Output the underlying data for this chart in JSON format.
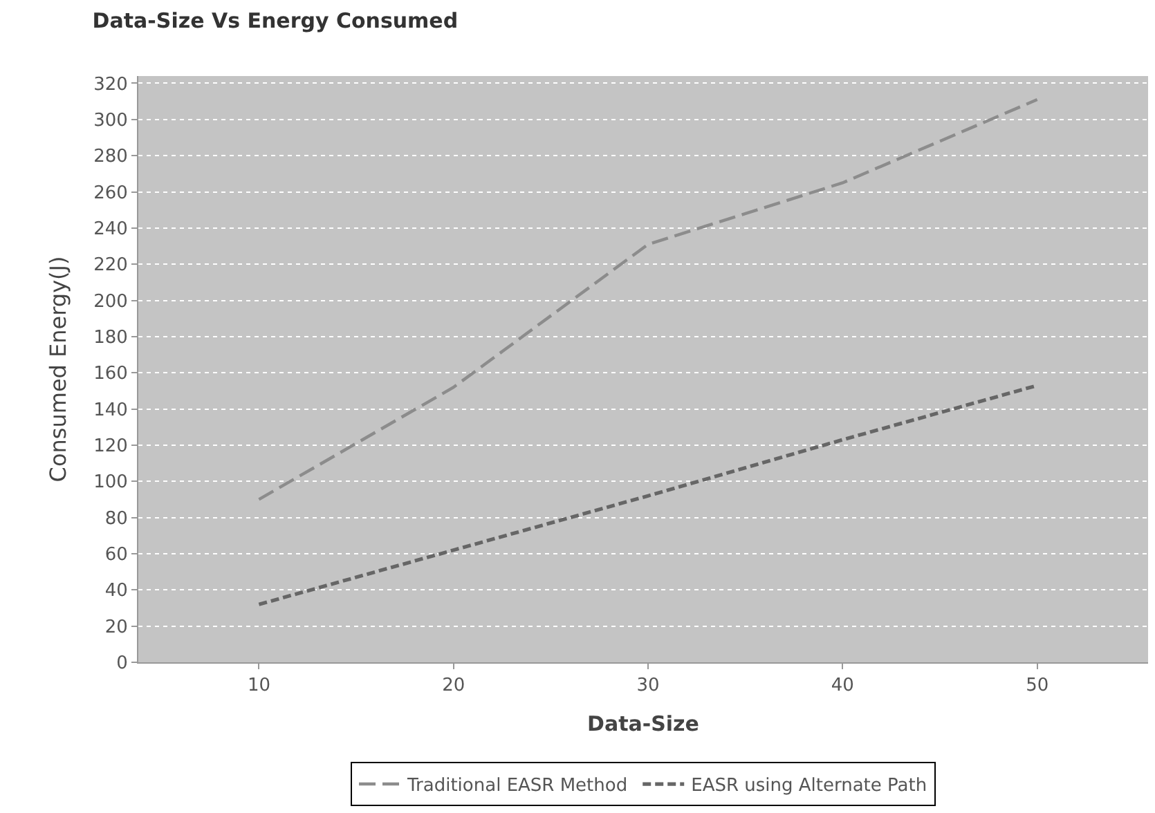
{
  "chart_data": {
    "type": "line",
    "title": "Data-Size Vs Energy Consumed",
    "xlabel": "Data-Size",
    "ylabel": "Consumed Energy(J)",
    "x": [
      10,
      20,
      30,
      40,
      50
    ],
    "series": [
      {
        "name": "Traditional EASR Method",
        "color": "#8c8c8c",
        "values": [
          90,
          152,
          231,
          265,
          311
        ],
        "line_style": "dashed"
      },
      {
        "name": "EASR using Alternate Path",
        "color": "#666666",
        "values": [
          32,
          62,
          92,
          123,
          153
        ],
        "line_style": "dashed"
      }
    ],
    "xlim": [
      3.8,
      55.7
    ],
    "xticks": [
      10,
      20,
      30,
      40,
      50
    ],
    "ylim": [
      0,
      324
    ],
    "yticks": [
      0,
      20,
      40,
      60,
      80,
      100,
      120,
      140,
      160,
      180,
      200,
      220,
      240,
      260,
      280,
      300,
      320
    ],
    "grid": "y",
    "legend": "bottom",
    "marker": "none"
  }
}
